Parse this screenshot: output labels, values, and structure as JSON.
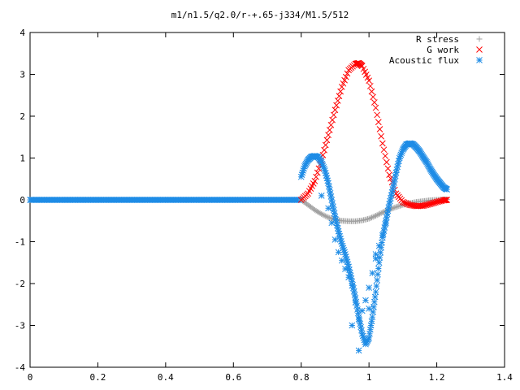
{
  "chart_data": {
    "type": "scatter",
    "title": "m1/n1.5/q2.0/r-+.65-j334/M1.5/512",
    "xlabel": "",
    "ylabel": "",
    "xlim": [
      0,
      1.4
    ],
    "ylim": [
      -4,
      4
    ],
    "xticks": [
      0,
      0.2,
      0.4,
      0.6,
      0.8,
      1,
      1.2,
      1.4
    ],
    "xtick_labels": [
      "0",
      "0.2",
      "0.4",
      "0.6",
      "0.8",
      "1",
      "1.2",
      "1.4"
    ],
    "yticks": [
      -4,
      -3,
      -2,
      -1,
      0,
      1,
      2,
      3,
      4
    ],
    "ytick_labels": [
      "-4",
      "-3",
      "-2",
      "-1",
      "0",
      "1",
      "2",
      "3",
      "4"
    ],
    "grid": false,
    "legend_position": "top-right",
    "series": [
      {
        "name": "R stress",
        "marker": "plus",
        "color": "#a0a0a0",
        "x": [
          0.8,
          0.82,
          0.84,
          0.86,
          0.88,
          0.9,
          0.92,
          0.94,
          0.96,
          0.98,
          1.0,
          1.02,
          1.04,
          1.06,
          1.08,
          1.1,
          1.12,
          1.14,
          1.16,
          1.18,
          1.2,
          1.22,
          1.23
        ],
        "y": [
          0.0,
          -0.12,
          -0.24,
          -0.34,
          -0.42,
          -0.47,
          -0.5,
          -0.51,
          -0.51,
          -0.49,
          -0.45,
          -0.38,
          -0.3,
          -0.23,
          -0.17,
          -0.12,
          -0.08,
          -0.05,
          -0.03,
          -0.01,
          0.0,
          0.01,
          0.01
        ]
      },
      {
        "name": "G work",
        "marker": "cross",
        "color": "#ff0000",
        "x": [
          0.8,
          0.82,
          0.84,
          0.86,
          0.88,
          0.9,
          0.92,
          0.94,
          0.96,
          0.97,
          0.98,
          1.0,
          1.02,
          1.04,
          1.06,
          1.08,
          1.1,
          1.12,
          1.14,
          1.16,
          1.18,
          1.2,
          1.22,
          1.23
        ],
        "y": [
          0.0,
          0.15,
          0.45,
          0.95,
          1.55,
          2.15,
          2.7,
          3.1,
          3.25,
          3.27,
          3.2,
          2.85,
          2.2,
          1.35,
          0.6,
          0.15,
          -0.05,
          -0.12,
          -0.15,
          -0.14,
          -0.1,
          -0.05,
          -0.01,
          0.0
        ]
      },
      {
        "name": "Acoustic flux",
        "marker": "star",
        "color": "#1e8ce6",
        "x": [
          0.8,
          0.81,
          0.82,
          0.83,
          0.84,
          0.85,
          0.86,
          0.87,
          0.88,
          0.89,
          0.9,
          0.91,
          0.92,
          0.93,
          0.94,
          0.95,
          0.96,
          0.97,
          0.98,
          0.99,
          1.0,
          1.01,
          1.02,
          1.03,
          1.04,
          1.05,
          1.06,
          1.07,
          1.08,
          1.09,
          1.1,
          1.11,
          1.12,
          1.13,
          1.14,
          1.15,
          1.16,
          1.17,
          1.18,
          1.19,
          1.2,
          1.21,
          1.22,
          1.23,
          0.86,
          0.88,
          0.89,
          0.9,
          0.91,
          0.92,
          0.93,
          0.94,
          0.95,
          0.96,
          0.97,
          0.98,
          0.99,
          1.0,
          1.01,
          1.02,
          1.03,
          1.04,
          1.05,
          0.95,
          0.97,
          1.0,
          1.02
        ],
        "y": [
          0.55,
          0.8,
          0.95,
          1.03,
          1.05,
          1.02,
          0.9,
          0.7,
          0.4,
          0.0,
          -0.4,
          -0.75,
          -1.05,
          -1.3,
          -1.6,
          -1.95,
          -2.35,
          -2.8,
          -3.2,
          -3.45,
          -3.3,
          -2.8,
          -2.2,
          -1.5,
          -0.9,
          -0.5,
          -0.1,
          0.25,
          0.65,
          1.0,
          1.2,
          1.32,
          1.35,
          1.33,
          1.25,
          1.15,
          1.02,
          0.9,
          0.75,
          0.62,
          0.5,
          0.4,
          0.3,
          0.25,
          0.1,
          -0.2,
          -0.55,
          -0.95,
          -1.25,
          -1.45,
          -1.65,
          -1.85,
          -2.05,
          -2.45,
          -2.85,
          -2.65,
          -2.4,
          -2.1,
          -1.75,
          -1.4,
          -1.1,
          -0.85,
          -0.55,
          -3.0,
          -3.6,
          -2.6,
          -1.3
        ]
      }
    ]
  }
}
